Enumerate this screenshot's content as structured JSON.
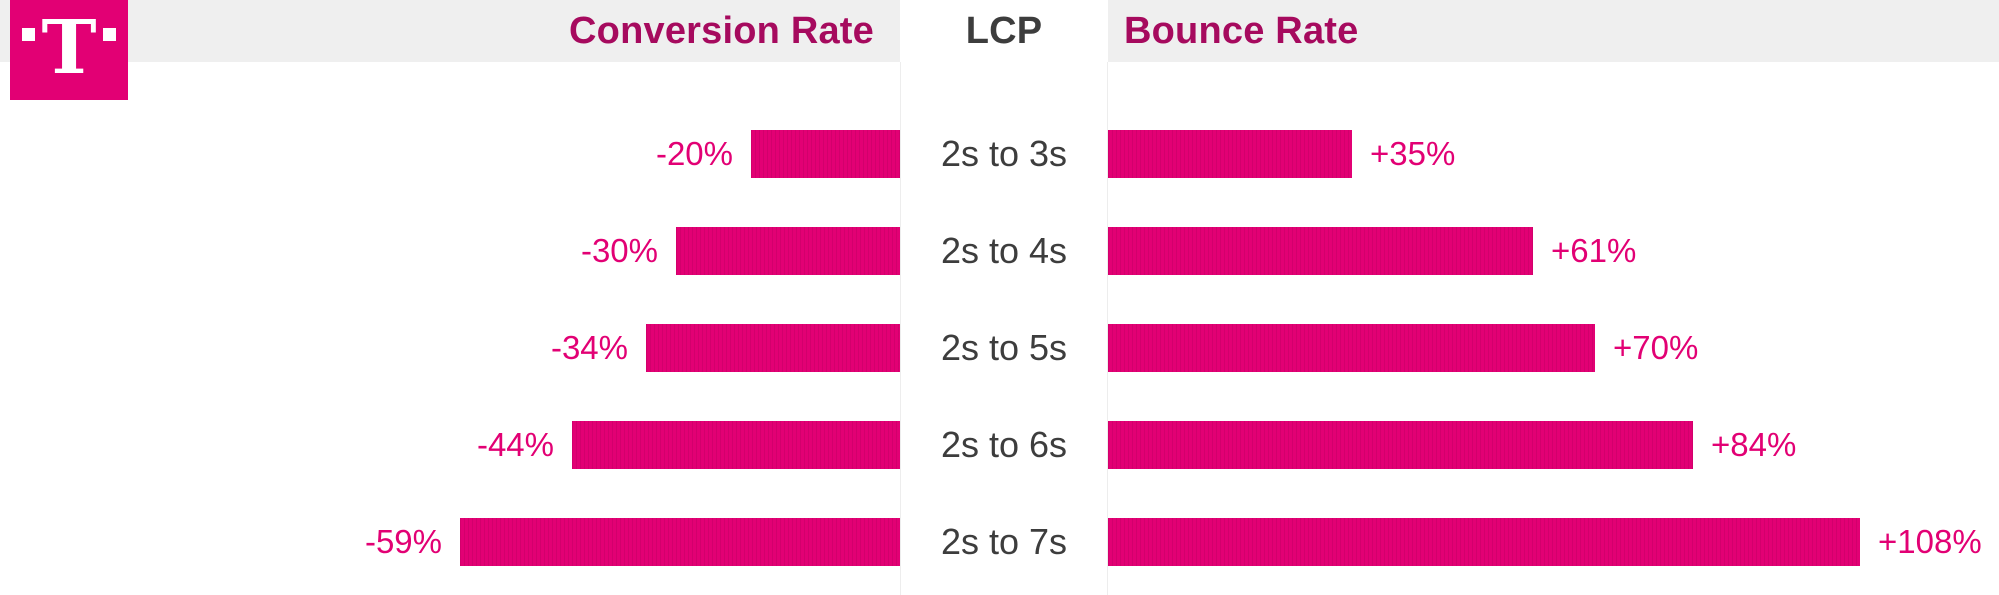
{
  "brand": {
    "logo_letter": "T",
    "magenta": "#E20074"
  },
  "header": {
    "left_label": "Conversion Rate",
    "center_label": "LCP",
    "right_label": "Bounce Rate",
    "header_text_color": "#A60A5E",
    "lcp_text_color": "#3D3D3D",
    "background": "#EFEFEF"
  },
  "chart_data": {
    "type": "bar",
    "orientation": "diverging-horizontal",
    "title": "",
    "categories": [
      "2s to 3s",
      "2s to 4s",
      "2s to 5s",
      "2s to 6s",
      "2s to 7s"
    ],
    "series": [
      {
        "name": "Conversion Rate",
        "direction": "left",
        "values": [
          -20,
          -30,
          -34,
          -44,
          -59
        ],
        "labels": [
          "-20%",
          "-30%",
          "-34%",
          "-44%",
          "-59%"
        ]
      },
      {
        "name": "Bounce Rate",
        "direction": "right",
        "values": [
          35,
          61,
          70,
          84,
          108
        ],
        "labels": [
          "+35%",
          "+61%",
          "+70%",
          "+84%",
          "+108%"
        ]
      }
    ],
    "bar_color": "#E20074",
    "value_label_color": "#E20074",
    "category_label_color": "#3D3D3D",
    "legend_position": "top",
    "grid": false
  }
}
